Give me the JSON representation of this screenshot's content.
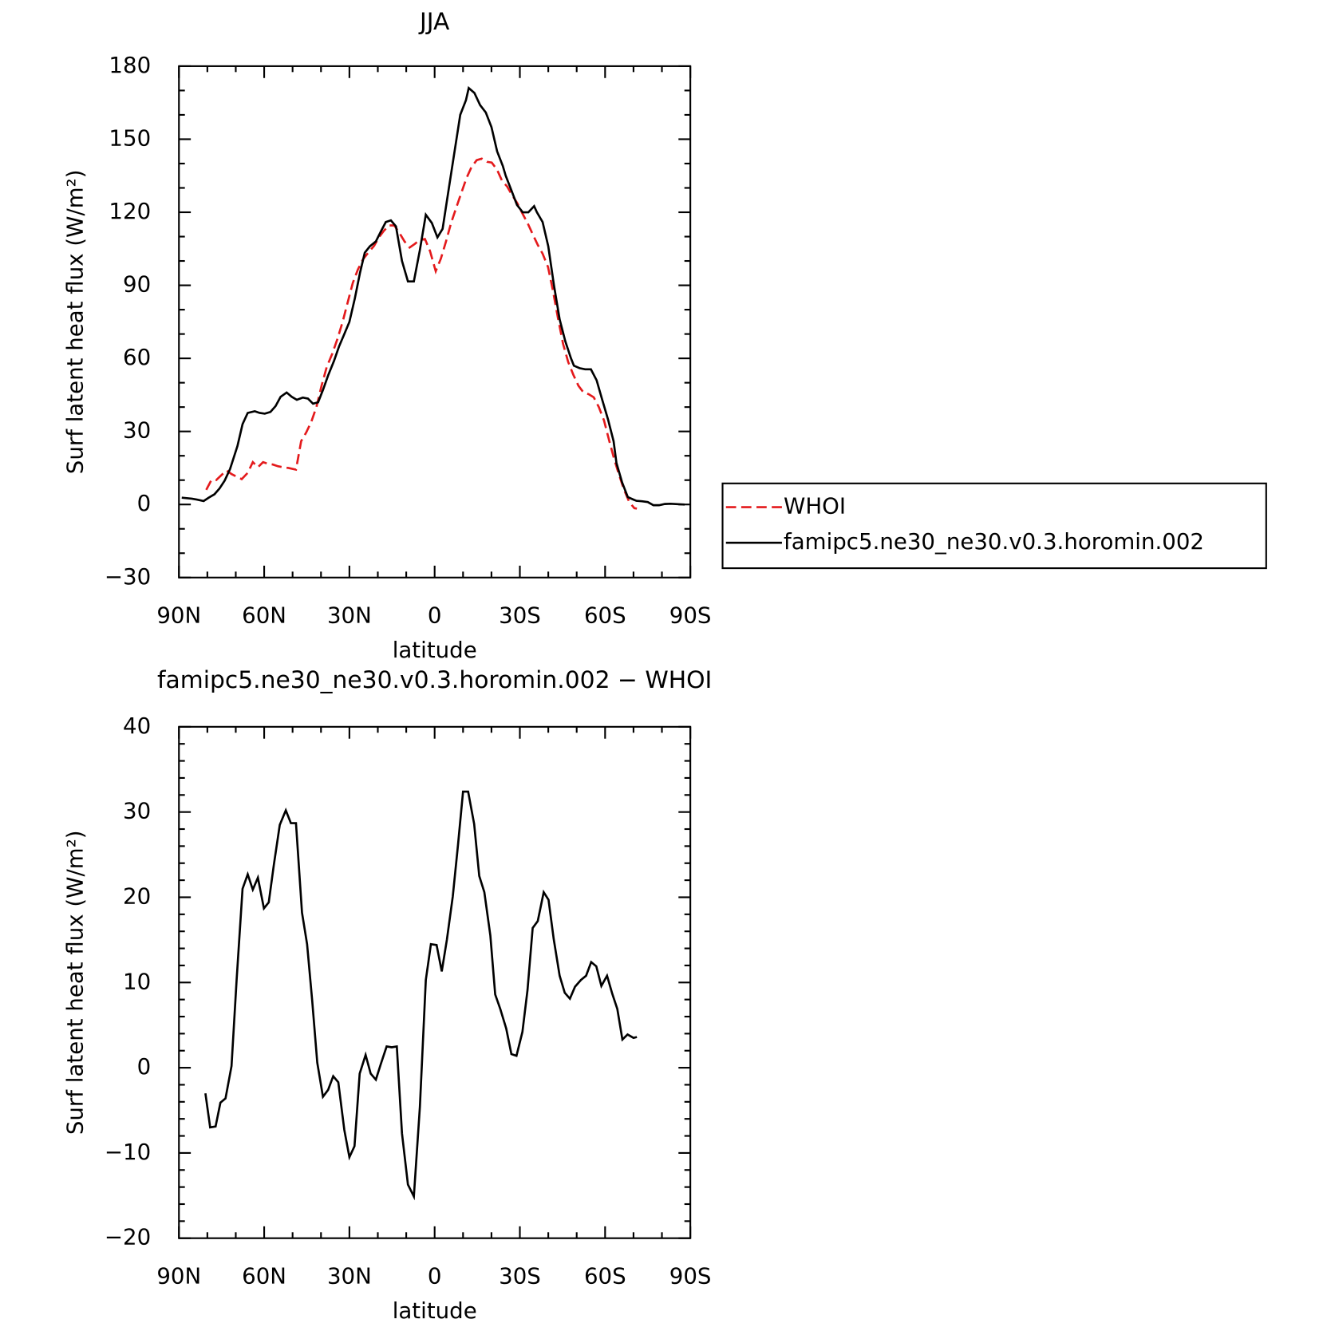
{
  "chart_data": [
    {
      "type": "line",
      "title": "JJA",
      "xlabel": "latitude",
      "ylabel": "Surf latent heat flux (W/m²)",
      "xlim": [
        90,
        -90
      ],
      "xticks": [
        {
          "value": 90,
          "label": "90N"
        },
        {
          "value": 60,
          "label": "60N"
        },
        {
          "value": 30,
          "label": "30N"
        },
        0,
        {
          "value": -30,
          "label": "30S"
        },
        {
          "value": -60,
          "label": "60S"
        },
        {
          "value": -90,
          "label": "90S"
        }
      ],
      "xminorticks": [
        80,
        70,
        50,
        40,
        20,
        10,
        -10,
        -20,
        -40,
        -50,
        -70,
        -80
      ],
      "ylim": [
        -30,
        180
      ],
      "yticks": [
        {
          "value": -30,
          "label": "−30"
        },
        0,
        30,
        60,
        90,
        120,
        150,
        180
      ],
      "yminorticks": [
        -20,
        -10,
        10,
        20,
        40,
        50,
        70,
        80,
        100,
        110,
        130,
        140,
        160,
        170
      ],
      "legend": "right",
      "series": [
        {
          "name": "WHOI",
          "color": "#e41a1c",
          "linestyle": "dashed",
          "x": [
            80.4,
            78.6,
            76.9,
            75.1,
            73.3,
            71.5,
            67.9,
            65.8,
            64,
            62.2,
            60.4,
            58.7,
            56.9,
            55.1,
            53.3,
            51.5,
            48.8,
            47,
            45.2,
            43.4,
            41.6,
            39.8,
            38,
            36,
            34.2,
            32.4,
            30.6,
            28.8,
            27,
            25.2,
            23.4,
            21.3,
            19.6,
            17.8,
            16,
            14.2,
            12.4,
            10.6,
            8.8,
            7,
            5.2,
            3.4,
            1.6,
            -0.4,
            -2.2,
            -4,
            -5.8,
            -7.6,
            -9.4,
            -11.2,
            -13,
            -14.8,
            -16.6,
            -18.4,
            -20.1,
            -21.9,
            -23.7,
            -25.5,
            -27.3,
            -29.1,
            -30.9,
            -32.7,
            -34.5,
            -36.3,
            -38,
            -39.9,
            -41.6,
            -43.4,
            -45.2,
            -47,
            -48.8,
            -50.6,
            -52.4,
            -54.2,
            -56,
            -57.8,
            -59.6,
            -61.3,
            -63.1,
            -64.9,
            -66.7,
            -68.5,
            -70.3,
            -71.2
          ],
          "values": [
            6,
            10,
            10,
            12,
            14,
            12.5,
            10.4,
            13,
            17.4,
            15.3,
            17.4,
            16.7,
            16.4,
            15.7,
            15.3,
            15,
            14.3,
            26,
            29.6,
            34,
            40,
            48.8,
            56.4,
            62,
            68,
            75,
            83,
            91,
            96.5,
            100.7,
            103.4,
            106.2,
            109.7,
            112.5,
            114.6,
            114.6,
            111.5,
            108,
            105.5,
            107,
            108.7,
            109,
            104,
            95.8,
            101,
            108,
            115.6,
            121.9,
            128,
            134,
            138.6,
            141.4,
            142,
            140.7,
            140.4,
            137.6,
            133,
            130.6,
            127,
            123.7,
            119.5,
            115.6,
            111,
            106.6,
            103,
            97.5,
            88,
            76.6,
            66,
            58.5,
            53.3,
            48.8,
            46,
            45.3,
            44,
            40,
            34.5,
            26.8,
            19,
            12.2,
            6,
            1,
            -1.5,
            -1.7
          ]
        },
        {
          "name": "famipc5.ne30_ne30.v0.3.horomin.002",
          "color": "#000000",
          "linestyle": "solid",
          "x": [
            89,
            85.5,
            83.7,
            81.3,
            79.5,
            77.5,
            75.7,
            73.9,
            72,
            69.4,
            67.6,
            65.8,
            63.3,
            61.6,
            59.8,
            57.8,
            56,
            54.2,
            52.1,
            50.3,
            48.5,
            46.4,
            44.6,
            42.8,
            41,
            39.3,
            37.5,
            35.4,
            33.6,
            31.8,
            30,
            28.1,
            26.3,
            24.6,
            22.8,
            20.7,
            19,
            17.2,
            15.4,
            13.6,
            11.5,
            9.4,
            7.3,
            5.2,
            3.1,
            1,
            -1,
            -2.8,
            -5,
            -7,
            -9,
            -11,
            -12,
            -14,
            -16,
            -18,
            -20,
            -22,
            -24,
            -25,
            -27,
            -29,
            -31,
            -33,
            -35,
            -36,
            -38,
            -40,
            -42,
            -44,
            -46,
            -48,
            -49,
            -51,
            -53,
            -55,
            -57,
            -59,
            -61,
            -63,
            -64,
            -66,
            -68,
            -70,
            -71,
            -73,
            -75,
            -77,
            -79,
            -81,
            -83,
            -88
          ],
          "values": [
            2.8,
            2.4,
            2,
            1.4,
            2.8,
            4.2,
            6.6,
            9.8,
            14.6,
            24,
            33,
            37.6,
            38.3,
            37.6,
            37.3,
            38,
            40.4,
            44.2,
            46,
            44.2,
            43,
            43.9,
            43.5,
            41.4,
            42,
            47,
            53,
            59,
            65,
            70,
            75,
            84.6,
            95,
            103.4,
            106,
            108,
            112,
            116,
            116.7,
            114.2,
            100,
            91.6,
            91.6,
            104.5,
            119,
            115.6,
            109.7,
            113.2,
            130,
            145,
            160,
            166,
            171,
            169,
            164,
            161,
            155,
            145,
            139,
            135,
            129,
            123,
            120,
            120,
            122.5,
            120,
            116,
            106,
            90,
            76,
            67,
            60,
            57,
            56,
            55.5,
            55.5,
            51,
            43,
            35,
            26,
            17,
            9,
            3,
            2,
            1.5,
            1.3,
            1,
            -0.3,
            -0.3,
            0.2,
            0.3,
            0
          ]
        }
      ]
    },
    {
      "type": "line",
      "title": "famipc5.ne30_ne30.v0.3.horomin.002 − WHOI",
      "xlabel": "latitude",
      "ylabel": "Surf latent heat flux (W/m²)",
      "xlim": [
        90,
        -90
      ],
      "xticks": [
        {
          "value": 90,
          "label": "90N"
        },
        {
          "value": 60,
          "label": "60N"
        },
        {
          "value": 30,
          "label": "30N"
        },
        0,
        {
          "value": -30,
          "label": "30S"
        },
        {
          "value": -60,
          "label": "60S"
        },
        {
          "value": -90,
          "label": "90S"
        }
      ],
      "xminorticks": [
        80,
        70,
        50,
        40,
        20,
        10,
        -10,
        -20,
        -40,
        -50,
        -70,
        -80
      ],
      "ylim": [
        -20,
        40
      ],
      "yticks": [
        {
          "value": -20,
          "label": "−20"
        },
        {
          "value": -10,
          "label": "−10"
        },
        0,
        10,
        20,
        30,
        40
      ],
      "yminorticks": [
        -18,
        -16,
        -14,
        -12,
        -8,
        -6,
        -4,
        -2,
        2,
        4,
        6,
        8,
        12,
        14,
        16,
        18,
        22,
        24,
        26,
        28,
        32,
        34,
        36,
        38
      ],
      "series": [
        {
          "color": "#000000",
          "linestyle": "solid",
          "x": [
            80.7,
            79,
            77.1,
            75.4,
            73.6,
            71.5,
            69.7,
            67.6,
            65.8,
            64,
            62.2,
            60.1,
            58.4,
            56.6,
            54.5,
            52.4,
            50.6,
            48.8,
            46.7,
            44.9,
            43.1,
            41.3,
            39.3,
            37.5,
            35.7,
            33.9,
            31.8,
            30,
            28.2,
            26.4,
            24.3,
            22.5,
            20.7,
            19,
            16.9,
            15.1,
            13.3,
            11.5,
            9.4,
            7.3,
            5.2,
            3.1,
            1.3,
            -0.7,
            -2.5,
            -4.3,
            -6.4,
            -8.2,
            -10,
            -11.8,
            -13.9,
            -15.7,
            -17.5,
            -19.6,
            -21.3,
            -23.1,
            -25.2,
            -27,
            -28.8,
            -30.9,
            -32.7,
            -34.5,
            -36.3,
            -38.4,
            -40.1,
            -41.9,
            -44,
            -45.8,
            -47.6,
            -49.4,
            -51.5,
            -53.3,
            -55.1,
            -56.9,
            -58.7,
            -60.7,
            -62.5,
            -64.3,
            -66.1,
            -67.9,
            -70,
            -71.2
          ],
          "values": [
            -3,
            -7,
            -6.9,
            -4.1,
            -3.6,
            0.2,
            10.3,
            21,
            22.7,
            20.9,
            22.3,
            18.7,
            19.4,
            23.8,
            28.5,
            30.2,
            28.7,
            28.7,
            18.2,
            14.5,
            7.9,
            0.6,
            -3.4,
            -2.6,
            -1,
            -1.7,
            -7.3,
            -10.5,
            -9.2,
            -0.7,
            1.5,
            -0.7,
            -1.4,
            0.4,
            2.5,
            2.4,
            2.5,
            -7.7,
            -13.7,
            -15.1,
            -4.6,
            10.3,
            14.5,
            14.4,
            11.3,
            15,
            20.1,
            26.1,
            32.4,
            32.4,
            28.6,
            22.5,
            20.6,
            15.5,
            8.6,
            6.9,
            4.6,
            1.6,
            1.4,
            4.2,
            9.1,
            16.4,
            17.2,
            20.6,
            19.7,
            15.1,
            10.8,
            8.8,
            8.1,
            9.5,
            10.3,
            10.8,
            12.4,
            11.9,
            9.6,
            10.8,
            8.7,
            6.9,
            3.3,
            3.9,
            3.5,
            3.6
          ]
        }
      ]
    }
  ]
}
